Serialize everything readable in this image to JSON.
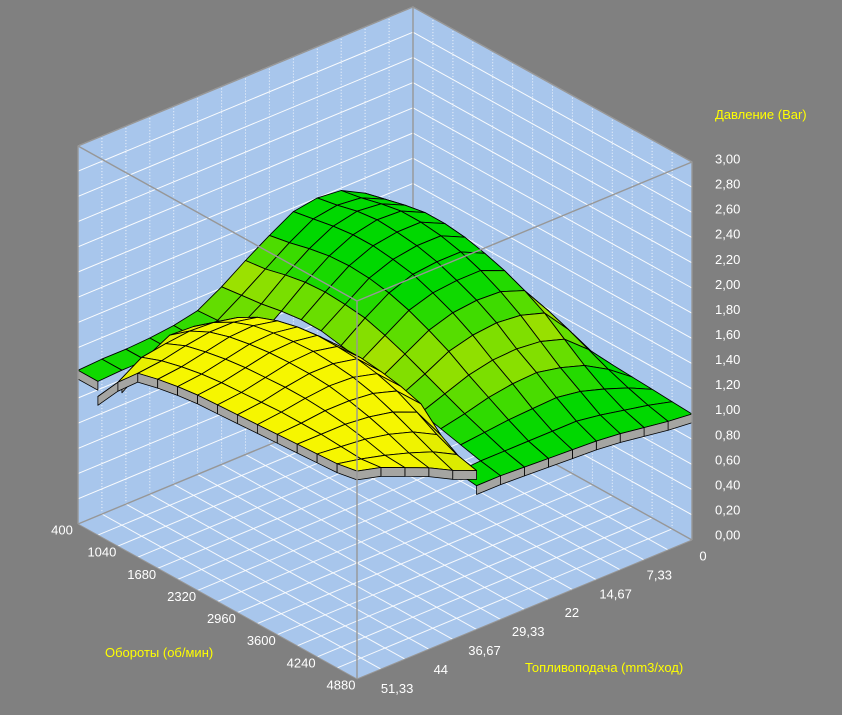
{
  "window": {
    "background": "#808080"
  },
  "labels": {
    "z_title": "Давление (Bar)",
    "rpm_title": "Обороты (об/мин)",
    "fuel_title": "Топливоподача (mm3/ход)",
    "z_ticks": [
      "3,00",
      "2,80",
      "2,60",
      "2,40",
      "2,20",
      "2,00",
      "1,80",
      "1,60",
      "1,40",
      "1,20",
      "1,00",
      "0,80",
      "0,60",
      "0,40",
      "0,20",
      "0,00"
    ],
    "rpm_ticks": [
      "400",
      "1040",
      "1680",
      "2320",
      "2960",
      "3600",
      "4240",
      "4880"
    ],
    "fuel_ticks": [
      "0",
      "7,33",
      "14,67",
      "22",
      "29,33",
      "36,67",
      "44",
      "51,33"
    ]
  },
  "colors": {
    "background": "#808080",
    "wall": "#a8c6ec",
    "floor": "#a8c6ec",
    "grid_line": "#ffffff",
    "box_edge": "#979797",
    "surface_green": "#00d800",
    "surface_yellowgreen": "#b4e200",
    "surface_yellow": "#f4f400",
    "surface_side": "#a5a5a2",
    "mesh_line": "#000000",
    "tick_text": "#ffffff",
    "title_text": "#ffff00"
  },
  "chart_data": {
    "type": "surface",
    "title": "",
    "x_axis": {
      "label": "Обороты (об/мин)",
      "values": [
        400,
        720,
        1040,
        1360,
        1680,
        2000,
        2320,
        2640,
        2960,
        3280,
        3600,
        3920,
        4240,
        4560,
        4880
      ]
    },
    "y_axis": {
      "label": "Топливоподача (mm3/ход)",
      "values": [
        0,
        3.67,
        7.33,
        11,
        14.67,
        18.33,
        22,
        25.67,
        29.33,
        33,
        36.67,
        40.33,
        44,
        47.67,
        51.33
      ]
    },
    "z_axis": {
      "label": "Давление (Bar)",
      "min": 0,
      "max": 3,
      "tick_step": 0.2
    },
    "rows_are": "fuel_index",
    "cols_are": "rpm_index",
    "series": [
      {
        "name": "pressure-surface-upper",
        "base_color": "#00d800",
        "values": [
          [
            1.1,
            1.1,
            1.1,
            1.1,
            1.1,
            1.08,
            1.08,
            1.06,
            1.05,
            1.05,
            1.04,
            1.03,
            1.02,
            1.01,
            1.0
          ],
          [
            1.42,
            1.44,
            1.46,
            1.48,
            1.48,
            1.46,
            1.44,
            1.41,
            1.37,
            1.31,
            1.24,
            1.17,
            1.11,
            1.06,
            1.02
          ],
          [
            1.68,
            1.72,
            1.76,
            1.79,
            1.79,
            1.77,
            1.73,
            1.68,
            1.61,
            1.52,
            1.4,
            1.28,
            1.18,
            1.1,
            1.05
          ],
          [
            1.78,
            1.81,
            1.85,
            1.88,
            1.88,
            1.86,
            1.82,
            1.76,
            1.68,
            1.58,
            1.46,
            1.34,
            1.24,
            1.14,
            1.08
          ],
          [
            1.8,
            1.83,
            1.87,
            1.89,
            1.88,
            1.86,
            1.82,
            1.76,
            1.69,
            1.6,
            1.48,
            1.38,
            1.27,
            1.17,
            1.1
          ],
          [
            1.77,
            1.8,
            1.83,
            1.85,
            1.85,
            1.83,
            1.8,
            1.74,
            1.67,
            1.58,
            1.47,
            1.37,
            1.26,
            1.17,
            1.11
          ],
          [
            1.66,
            1.69,
            1.73,
            1.76,
            1.77,
            1.76,
            1.73,
            1.68,
            1.61,
            1.53,
            1.43,
            1.34,
            1.25,
            1.17,
            1.12
          ],
          [
            1.54,
            1.56,
            1.6,
            1.63,
            1.64,
            1.63,
            1.61,
            1.56,
            1.5,
            1.43,
            1.36,
            1.29,
            1.23,
            1.17,
            1.13
          ],
          [
            1.41,
            1.43,
            1.45,
            1.48,
            1.5,
            1.5,
            1.47,
            1.44,
            1.39,
            1.34,
            1.29,
            1.25,
            1.21,
            1.17,
            1.14
          ],
          [
            1.3,
            1.31,
            1.33,
            1.34,
            1.36,
            1.36,
            1.34,
            1.32,
            1.3,
            1.27,
            1.24,
            1.21,
            1.19,
            1.16,
            1.14
          ],
          [
            1.26,
            1.26,
            1.27,
            1.28,
            1.28,
            1.28,
            1.28,
            1.27,
            1.25,
            1.23,
            1.21,
            1.19,
            1.17,
            1.15,
            1.13
          ],
          [
            1.24,
            1.24,
            1.25,
            1.25,
            1.26,
            1.26,
            1.25,
            1.24,
            1.23,
            1.21,
            1.2,
            1.18,
            1.16,
            1.14,
            1.12
          ],
          [
            1.23,
            1.23,
            1.24,
            1.24,
            1.24,
            1.24,
            1.24,
            1.23,
            1.22,
            1.21,
            1.19,
            1.17,
            1.15,
            1.13,
            1.11
          ],
          [
            1.23,
            1.23,
            1.23,
            1.23,
            1.23,
            1.23,
            1.23,
            1.22,
            1.21,
            1.2,
            1.18,
            1.16,
            1.14,
            1.12,
            1.1
          ],
          [
            1.22,
            1.22,
            1.22,
            1.22,
            1.22,
            1.22,
            1.22,
            1.21,
            1.2,
            1.19,
            1.17,
            1.15,
            1.13,
            1.11,
            1.1
          ]
        ]
      },
      {
        "name": "pressure-surface-lower",
        "base_color": "#f4f400",
        "values": [
          [
            0.9,
            0.9,
            0.9,
            0.9,
            0.9,
            0.9,
            0.9,
            0.9,
            0.9,
            0.9,
            0.9,
            0.9,
            0.9,
            0.9,
            0.9
          ],
          [
            0.9,
            0.9,
            0.9,
            0.9,
            0.9,
            0.9,
            0.9,
            0.9,
            0.9,
            0.9,
            0.9,
            0.9,
            0.9,
            0.9,
            0.9
          ],
          [
            0.9,
            0.9,
            0.9,
            0.9,
            0.9,
            0.9,
            0.9,
            0.9,
            0.9,
            0.9,
            0.9,
            0.9,
            0.9,
            0.9,
            0.9
          ],
          [
            0.9,
            0.9,
            0.9,
            0.9,
            0.9,
            0.9,
            0.9,
            0.9,
            0.9,
            0.9,
            0.9,
            0.9,
            0.9,
            0.9,
            0.9
          ],
          [
            0.9,
            0.9,
            0.9,
            0.9,
            0.9,
            0.9,
            0.9,
            0.9,
            0.9,
            0.9,
            0.9,
            0.9,
            0.9,
            0.9,
            0.9
          ],
          [
            0.9,
            0.9,
            0.9,
            0.9,
            0.9,
            0.9,
            0.9,
            0.9,
            0.9,
            0.9,
            0.9,
            0.9,
            0.9,
            0.9,
            0.9
          ],
          [
            0.9,
            0.9,
            0.9,
            0.9,
            0.9,
            0.9,
            0.9,
            0.9,
            0.9,
            0.9,
            0.9,
            0.9,
            0.9,
            0.9,
            0.9
          ],
          [
            0.95,
            1.0,
            1.05,
            1.1,
            1.15,
            1.18,
            1.2,
            1.2,
            1.18,
            1.15,
            1.1,
            1.05,
            1.0,
            0.95,
            0.92
          ],
          [
            1.05,
            1.18,
            1.28,
            1.36,
            1.42,
            1.45,
            1.46,
            1.46,
            1.44,
            1.41,
            1.36,
            1.2,
            1.1,
            1.05,
            1.0
          ],
          [
            1.05,
            1.3,
            1.42,
            1.51,
            1.57,
            1.61,
            1.63,
            1.63,
            1.62,
            1.59,
            1.54,
            1.46,
            1.37,
            1.3,
            1.26
          ],
          [
            1.05,
            1.34,
            1.46,
            1.55,
            1.61,
            1.64,
            1.66,
            1.67,
            1.66,
            1.64,
            1.6,
            1.54,
            1.47,
            1.4,
            1.34
          ],
          [
            1.05,
            1.35,
            1.47,
            1.55,
            1.6,
            1.63,
            1.65,
            1.66,
            1.66,
            1.65,
            1.62,
            1.58,
            1.53,
            1.47,
            1.44
          ],
          [
            1.05,
            1.25,
            1.45,
            1.52,
            1.56,
            1.59,
            1.61,
            1.62,
            1.63,
            1.63,
            1.62,
            1.6,
            1.57,
            1.53,
            1.52
          ],
          [
            1.05,
            1.12,
            1.42,
            1.48,
            1.52,
            1.55,
            1.57,
            1.58,
            1.59,
            1.6,
            1.6,
            1.6,
            1.59,
            1.58,
            1.6
          ],
          [
            1.0,
            1.1,
            1.3,
            1.46,
            1.5,
            1.53,
            1.55,
            1.56,
            1.57,
            1.58,
            1.59,
            1.6,
            1.61,
            1.62,
            1.65
          ]
        ]
      }
    ]
  }
}
